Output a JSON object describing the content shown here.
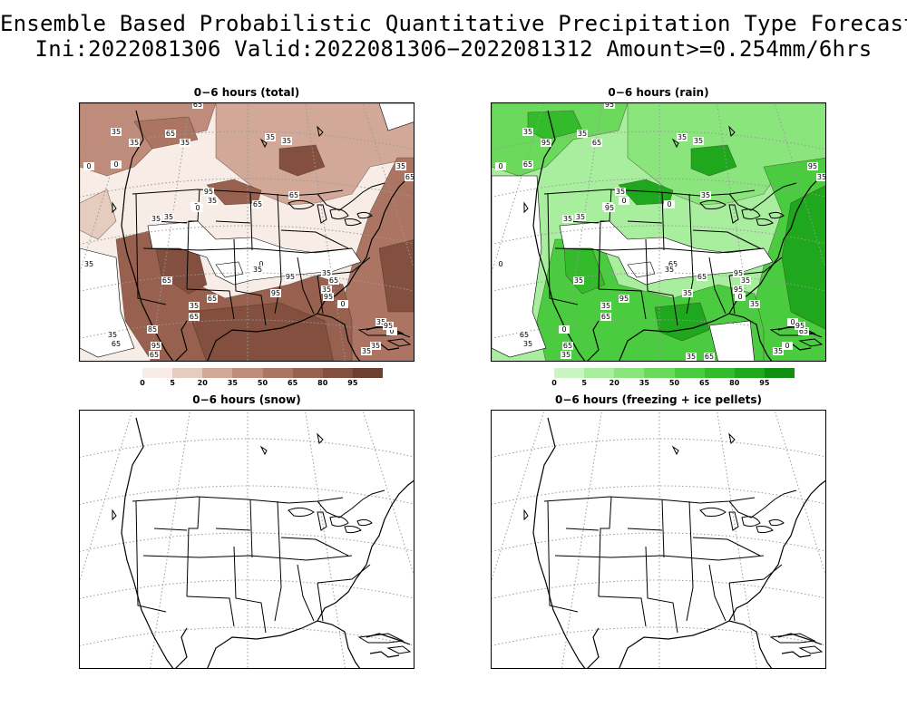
{
  "header": {
    "line1": "Ensemble Based Probabilistic Quantitative Precipitation Type Forecast",
    "line2": "Ini:2022081306 Valid:2022081306−2022081312 Amount>=0.254mm/6hrs"
  },
  "panels": [
    {
      "title": "0−6 hours (total)"
    },
    {
      "title": "0−6 hours (rain)"
    },
    {
      "title": "0−6 hours (snow)"
    },
    {
      "title": "0−6 hours (freezing + ice pellets)"
    }
  ],
  "colorbars": {
    "total": {
      "labels": [
        "0",
        "5",
        "20",
        "35",
        "50",
        "65",
        "80",
        "95"
      ],
      "colors": [
        "#f7ece6",
        "#e6cbbf",
        "#d2a899",
        "#bf8c7b",
        "#ac7462",
        "#97604f",
        "#83503f",
        "#6d3f2f"
      ]
    },
    "rain": {
      "labels": [
        "0",
        "5",
        "20",
        "35",
        "50",
        "65",
        "80",
        "95"
      ],
      "colors": [
        "#c8f5c0",
        "#a9ee9f",
        "#8be57d",
        "#6ad95c",
        "#4bcc40",
        "#33bb2c",
        "#1fa81d",
        "#118f13"
      ]
    }
  },
  "contour_labels": {
    "total": [
      "65",
      "35",
      "35",
      "65",
      "35",
      "0",
      "35",
      "0",
      "35",
      "0",
      "95",
      "35",
      "65",
      "35",
      "0",
      "65",
      "35",
      "35",
      "0",
      "35",
      "65",
      "95",
      "35",
      "65",
      "95",
      "35",
      "95",
      "65",
      "35",
      "85",
      "65",
      "95",
      "65",
      "35",
      "65",
      "35",
      "0",
      "35",
      "65",
      "0",
      "95",
      "35",
      "35"
    ],
    "rain": [
      "95",
      "35",
      "95",
      "35",
      "65",
      "65",
      "35",
      "0",
      "35",
      "0",
      "35",
      "0",
      "0",
      "35",
      "95",
      "35",
      "0",
      "35",
      "65",
      "35",
      "35",
      "65",
      "95",
      "35",
      "35",
      "95",
      "0",
      "95",
      "35",
      "0",
      "65",
      "65",
      "35",
      "65",
      "35",
      "0",
      "65",
      "95",
      "35",
      "35",
      "95",
      "0",
      "35",
      "65",
      "35"
    ]
  }
}
